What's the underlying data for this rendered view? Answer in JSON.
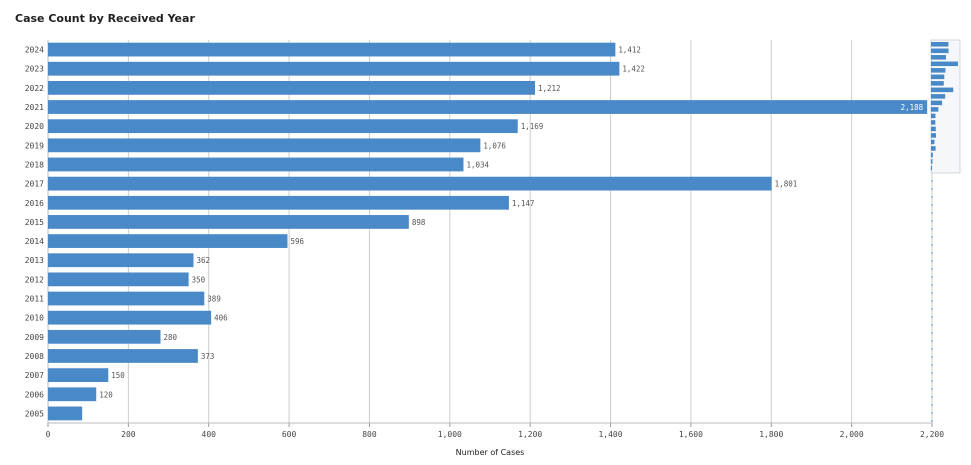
{
  "chart_data": {
    "type": "bar",
    "orientation": "horizontal",
    "title": "Case Count by Received Year",
    "xlabel": "Number of Cases",
    "ylabel": "",
    "categories": [
      "2024",
      "2023",
      "2022",
      "2021",
      "2020",
      "2019",
      "2018",
      "2017",
      "2016",
      "2015",
      "2014",
      "2013",
      "2012",
      "2011",
      "2010",
      "2009",
      "2008",
      "2007",
      "2006",
      "2005"
    ],
    "values": [
      1412,
      1422,
      1212,
      2188,
      1169,
      1076,
      1034,
      1801,
      1147,
      898,
      596,
      362,
      350,
      389,
      406,
      280,
      373,
      150,
      120,
      85
    ],
    "data_labels": [
      "1,412",
      "1,422",
      "1,212",
      "2,188",
      "1,169",
      "1,076",
      "1,034",
      "1,801",
      "1,147",
      "898",
      "596",
      "362",
      "350",
      "389",
      "406",
      "280",
      "373",
      "150",
      "120",
      ""
    ],
    "xlim": [
      0,
      2200
    ],
    "xticks": [
      0,
      200,
      400,
      600,
      800,
      1000,
      1200,
      1400,
      1600,
      1800,
      2000,
      2200
    ],
    "xtick_labels": [
      "0",
      "200",
      "400",
      "600",
      "800",
      "1,000",
      "1,200",
      "1,400",
      "1,600",
      "1,800",
      "2,000",
      "2,200"
    ],
    "grid": true,
    "bar_color": "#4a89c8",
    "minimap": true
  }
}
